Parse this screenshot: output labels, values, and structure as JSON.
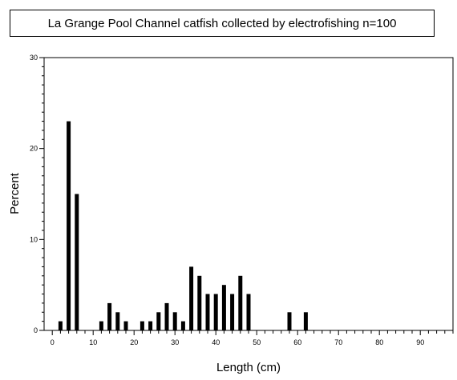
{
  "chart_data": {
    "type": "bar",
    "title": "La Grange Pool Channel catfish collected by electrofishing n=100",
    "xlabel": "Length (cm)",
    "ylabel": "Percent",
    "xlim": [
      -2,
      98
    ],
    "ylim": [
      0,
      30
    ],
    "x_ticks": [
      0,
      10,
      20,
      30,
      40,
      50,
      60,
      70,
      80,
      90
    ],
    "y_ticks": [
      0,
      10,
      20,
      30
    ],
    "x": [
      2,
      4,
      6,
      12,
      14,
      16,
      18,
      22,
      24,
      26,
      28,
      30,
      32,
      34,
      36,
      38,
      40,
      42,
      44,
      46,
      48,
      58,
      62
    ],
    "values": [
      1,
      23,
      15,
      1,
      3,
      2,
      1,
      1,
      1,
      2,
      3,
      2,
      1,
      7,
      6,
      4,
      4,
      5,
      4,
      6,
      4,
      2,
      2
    ],
    "grid": false,
    "legend": "none"
  }
}
